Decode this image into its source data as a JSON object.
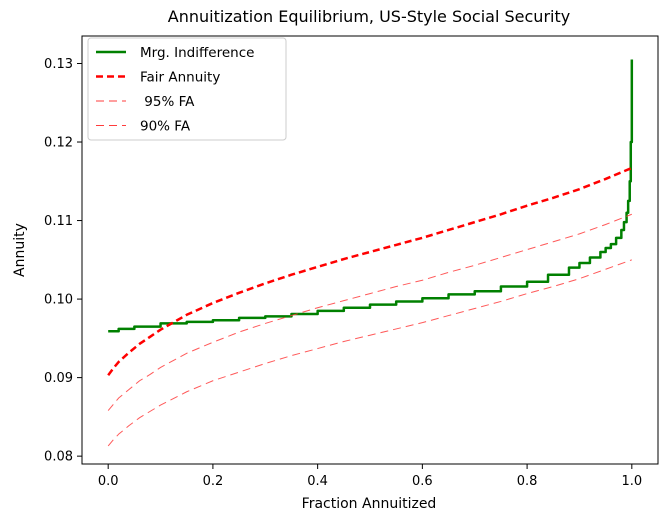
{
  "chart_data": {
    "type": "line",
    "title": "Annuitization Equilibrium, US-Style Social Security",
    "xlabel": "Fraction Annuitized",
    "ylabel": "Annuity",
    "xlim": [
      -0.05,
      1.05
    ],
    "ylim": [
      0.079,
      0.1335
    ],
    "xticks": [
      0.0,
      0.2,
      0.4,
      0.6,
      0.8,
      1.0
    ],
    "xtick_labels": [
      "0.0",
      "0.2",
      "0.4",
      "0.6",
      "0.8",
      "1.0"
    ],
    "yticks": [
      0.08,
      0.09,
      0.1,
      0.11,
      0.12,
      0.13
    ],
    "ytick_labels": [
      "0.08",
      "0.09",
      "0.10",
      "0.11",
      "0.12",
      "0.13"
    ],
    "grid": false,
    "legend_position": "top-left",
    "series": [
      {
        "name": "Mrg. Indifference",
        "style": "solid",
        "color": "#008000",
        "width": 2.5,
        "x": [
          0.0,
          0.02,
          0.05,
          0.1,
          0.15,
          0.2,
          0.25,
          0.3,
          0.35,
          0.4,
          0.45,
          0.5,
          0.55,
          0.6,
          0.65,
          0.7,
          0.75,
          0.8,
          0.84,
          0.88,
          0.9,
          0.92,
          0.94,
          0.95,
          0.96,
          0.97,
          0.98,
          0.985,
          0.99,
          0.993,
          0.996,
          0.998,
          1.0
        ],
        "y": [
          0.0959,
          0.0962,
          0.0965,
          0.0969,
          0.0971,
          0.0973,
          0.0976,
          0.0978,
          0.0981,
          0.0985,
          0.0989,
          0.0993,
          0.0997,
          0.1001,
          0.1006,
          0.101,
          0.1016,
          0.1022,
          0.1031,
          0.104,
          0.1046,
          0.1053,
          0.106,
          0.1065,
          0.107,
          0.1078,
          0.1088,
          0.1098,
          0.111,
          0.1125,
          0.115,
          0.12,
          0.1305
        ]
      },
      {
        "name": "Fair Annuity",
        "style": "dashed",
        "color": "#ff0000",
        "width": 2.5,
        "x": [
          0.0,
          0.01,
          0.02,
          0.04,
          0.06,
          0.08,
          0.1,
          0.15,
          0.2,
          0.25,
          0.3,
          0.35,
          0.4,
          0.45,
          0.5,
          0.55,
          0.6,
          0.65,
          0.7,
          0.75,
          0.8,
          0.85,
          0.9,
          0.95,
          1.0
        ],
        "y": [
          0.0903,
          0.0912,
          0.092,
          0.0932,
          0.0943,
          0.0952,
          0.0961,
          0.098,
          0.0995,
          0.1008,
          0.102,
          0.1031,
          0.1041,
          0.1051,
          0.106,
          0.1069,
          0.1078,
          0.1088,
          0.1098,
          0.1108,
          0.1119,
          0.1129,
          0.114,
          0.1153,
          0.1167
        ]
      },
      {
        "name": " 95% FA",
        "style": "dashed",
        "color": "#ff3c3c",
        "width": 1,
        "x": [
          0.0,
          0.01,
          0.02,
          0.04,
          0.06,
          0.08,
          0.1,
          0.15,
          0.2,
          0.25,
          0.3,
          0.35,
          0.4,
          0.45,
          0.5,
          0.55,
          0.6,
          0.65,
          0.7,
          0.75,
          0.8,
          0.85,
          0.9,
          0.95,
          1.0
        ],
        "y": [
          0.0858,
          0.0866,
          0.0874,
          0.0885,
          0.0896,
          0.0904,
          0.0913,
          0.0931,
          0.0945,
          0.0958,
          0.0969,
          0.0979,
          0.0989,
          0.0998,
          0.1007,
          0.1016,
          0.1024,
          0.1034,
          0.1043,
          0.1053,
          0.1063,
          0.1073,
          0.1083,
          0.1095,
          0.1108
        ]
      },
      {
        "name": "90% FA",
        "style": "dashed",
        "color": "#ff3c3c",
        "width": 1,
        "x": [
          0.0,
          0.01,
          0.02,
          0.04,
          0.06,
          0.08,
          0.1,
          0.15,
          0.2,
          0.25,
          0.3,
          0.35,
          0.4,
          0.45,
          0.5,
          0.55,
          0.6,
          0.65,
          0.7,
          0.75,
          0.8,
          0.85,
          0.9,
          0.95,
          1.0
        ],
        "y": [
          0.0813,
          0.0821,
          0.0828,
          0.0839,
          0.0849,
          0.0857,
          0.0865,
          0.0882,
          0.0896,
          0.0907,
          0.0918,
          0.0928,
          0.0937,
          0.0946,
          0.0954,
          0.0962,
          0.097,
          0.0979,
          0.0988,
          0.0997,
          0.1007,
          0.1016,
          0.1026,
          0.1038,
          0.105
        ]
      }
    ]
  }
}
